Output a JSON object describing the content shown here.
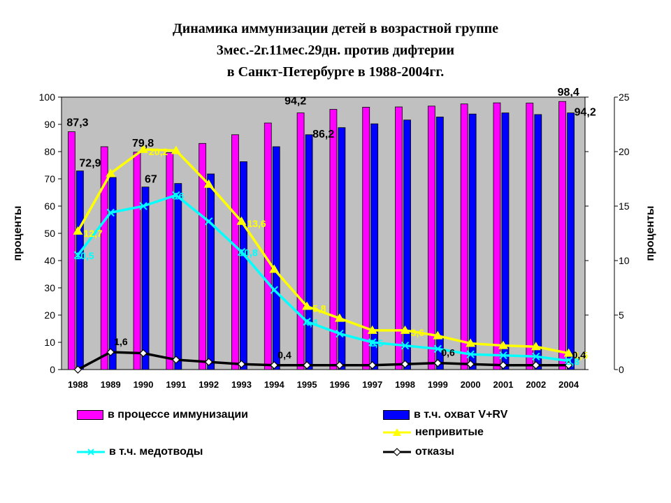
{
  "title": {
    "line1": "Динамика иммунизации детей в возрастной группе",
    "line2": "3мес.-2г.11мес.29дн. против дифтерии",
    "line3": "в Санкт-Петербурге в 1988-2004гг."
  },
  "colors": {
    "plot_bg": "#c0c0c0",
    "bar1": "#ff00ff",
    "bar2": "#0000ff",
    "neprivitye": "#ffff00",
    "medotvody": "#00ffff",
    "otkazy": "#000000"
  },
  "chart_data": {
    "type": "bar",
    "title": "Динамика иммунизации детей в возрастной группе 3мес.-2г.11мес.29дн. против дифтерии в Санкт-Петербурге в 1988-2004гг.",
    "categories": [
      "1988",
      "1989",
      "1990",
      "1991",
      "1992",
      "1993",
      "1994",
      "1995",
      "1996",
      "1997",
      "1998",
      "1999",
      "2000",
      "2001",
      "2002",
      "2004"
    ],
    "ylabel": "проценты",
    "y2label": "проценты",
    "ylim": [
      0,
      100
    ],
    "y2lim": [
      0,
      25
    ],
    "yticks": [
      "0",
      "10",
      "20",
      "30",
      "40",
      "50",
      "60",
      "70",
      "80",
      "90",
      "100"
    ],
    "y2ticks": [
      "0",
      "5",
      "10",
      "15",
      "20",
      "25"
    ],
    "grid": false,
    "legend_position": "bottom",
    "bar_series": [
      {
        "name": "в процессе иммунизации",
        "axis": "left",
        "values": [
          87.3,
          81.8,
          79.8,
          79.6,
          83.0,
          86.2,
          90.5,
          94.2,
          95.5,
          96.3,
          96.4,
          96.7,
          97.5,
          97.9,
          97.8,
          98.4
        ]
      },
      {
        "name": "в т.ч. охват V+RV",
        "axis": "left",
        "values": [
          72.9,
          70.5,
          67.0,
          68.3,
          71.8,
          76.3,
          81.8,
          86.2,
          88.8,
          90.2,
          91.6,
          92.7,
          93.8,
          94.2,
          93.6,
          94.2
        ]
      }
    ],
    "line_series": [
      {
        "name": "непривитые",
        "axis": "right",
        "marker": "triangle",
        "values": [
          12.7,
          18.0,
          20.2,
          20.1,
          17.0,
          13.6,
          9.2,
          5.8,
          4.7,
          3.6,
          3.6,
          3.1,
          2.4,
          2.2,
          2.1,
          1.5
        ]
      },
      {
        "name": "в т.ч. медотводы",
        "axis": "right",
        "marker": "x",
        "values": [
          10.5,
          14.4,
          15.0,
          16.0,
          13.6,
          10.8,
          7.3,
          4.4,
          3.3,
          2.5,
          2.2,
          1.9,
          1.4,
          1.3,
          1.2,
          0.8
        ]
      },
      {
        "name": "отказы",
        "axis": "right",
        "marker": "diamond",
        "values": [
          0.0,
          1.6,
          1.5,
          0.9,
          0.7,
          0.5,
          0.4,
          0.4,
          0.4,
          0.4,
          0.5,
          0.6,
          0.5,
          0.4,
          0.4,
          0.4
        ]
      }
    ],
    "data_labels": [
      {
        "text": "87,3",
        "series": "в процессе иммунизации",
        "index": 0
      },
      {
        "text": "72,9",
        "series": "в т.ч. охват V+RV",
        "index": 0
      },
      {
        "text": "79,8",
        "series": "в процессе иммунизации",
        "index": 2
      },
      {
        "text": "67",
        "series": "в т.ч. охват V+RV",
        "index": 2
      },
      {
        "text": "94,2",
        "series": "в процессе иммунизации",
        "index": 7
      },
      {
        "text": "86,2",
        "series": "в т.ч. охват V+RV",
        "index": 7
      },
      {
        "text": "98,4",
        "series": "в процессе иммунизации",
        "index": 15
      },
      {
        "text": "94,2",
        "series": "в т.ч. охват V+RV",
        "index": 15
      },
      {
        "text": "12,7",
        "series": "непривитые",
        "index": 0
      },
      {
        "text": "20,2",
        "series": "непривитые",
        "index": 2
      },
      {
        "text": "13,6",
        "series": "непривитые",
        "index": 5
      },
      {
        "text": "5,8",
        "series": "непривитые",
        "index": 7
      },
      {
        "text": "3,6",
        "series": "непривитые",
        "index": 10
      },
      {
        "text": "1,5",
        "series": "непривитые",
        "index": 15
      },
      {
        "text": "10,5",
        "series": "в т.ч. медотводы",
        "index": 0
      },
      {
        "text": "16",
        "series": "в т.ч. медотводы",
        "index": 3
      },
      {
        "text": "10,8",
        "series": "в т.ч. медотводы",
        "index": 5
      },
      {
        "text": "4,4",
        "series": "в т.ч. медотводы",
        "index": 7
      },
      {
        "text": "2,5",
        "series": "в т.ч. медотводы",
        "index": 9
      },
      {
        "text": "0,8",
        "series": "в т.ч. медотводы",
        "index": 15
      },
      {
        "text": "1,6",
        "series": "отказы",
        "index": 1
      },
      {
        "text": "0,4",
        "series": "отказы",
        "index": 6
      },
      {
        "text": "0,6",
        "series": "отказы",
        "index": 11
      },
      {
        "text": "0,4",
        "series": "отказы",
        "index": 15
      }
    ]
  },
  "legend": {
    "bar1": "в процессе иммунизации",
    "bar2": "в т.ч. охват V+RV",
    "neprivitye": "непривитые",
    "medotvody": "в т.ч. медотводы",
    "otkazy": "отказы"
  }
}
